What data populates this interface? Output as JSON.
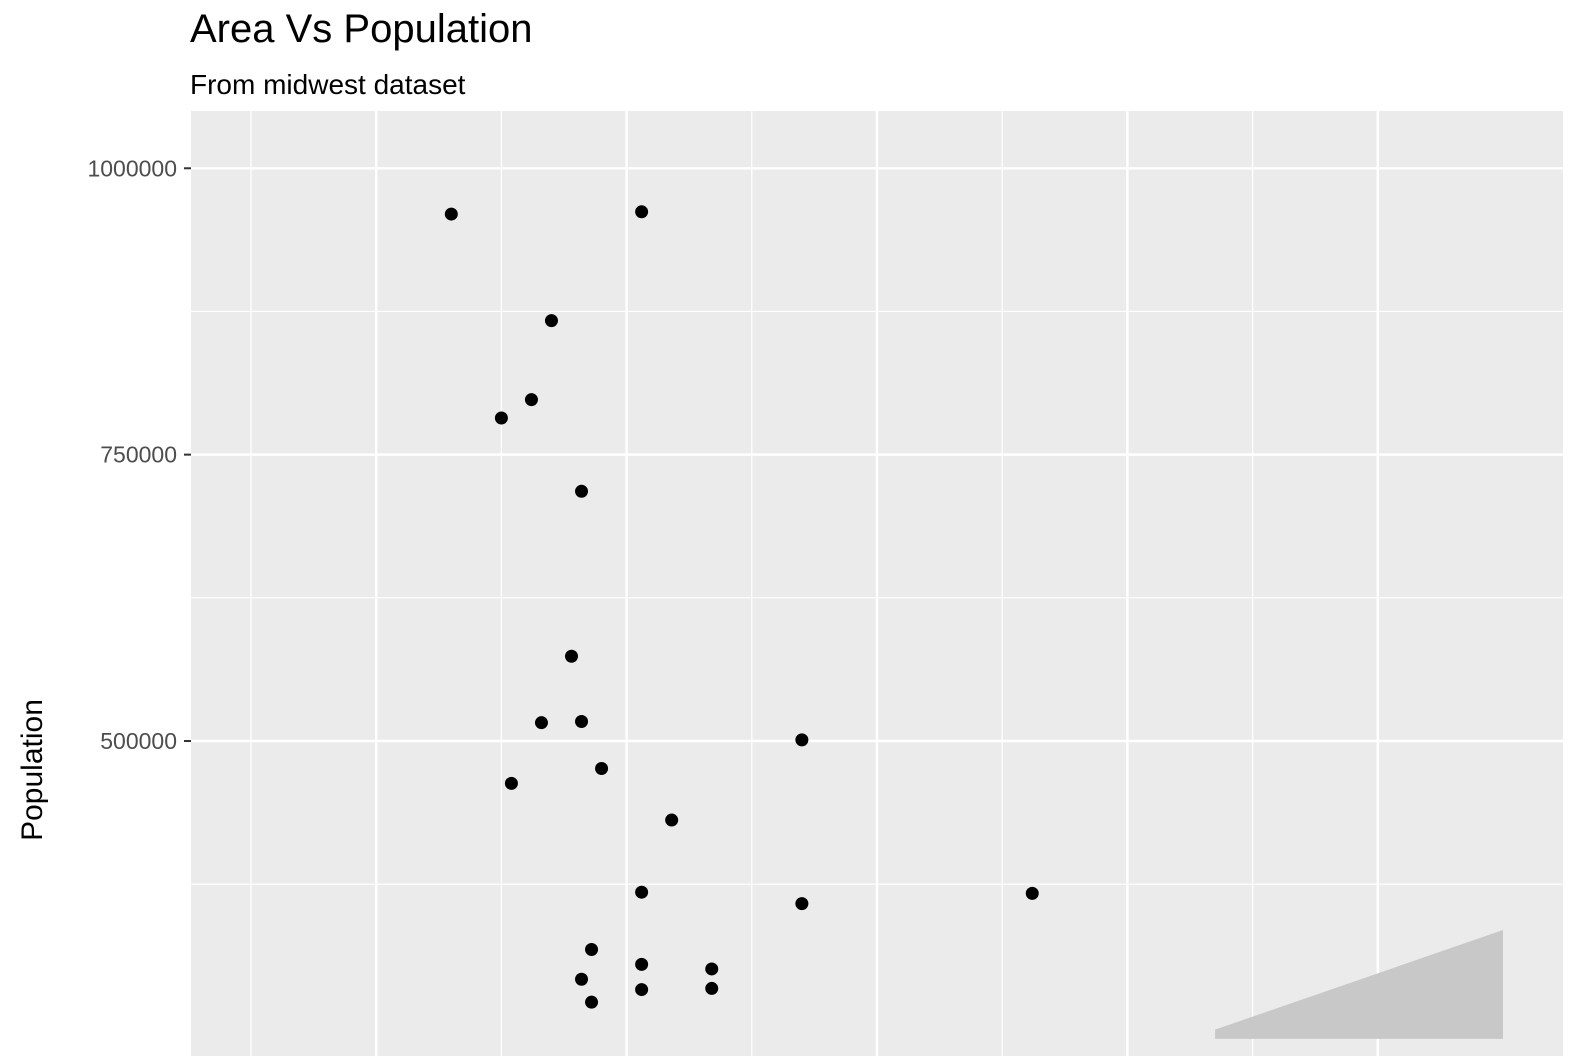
{
  "chart_data": {
    "type": "scatter",
    "title": "Area Vs Population",
    "subtitle": "From midwest dataset",
    "xlabel": "",
    "ylabel": "Population",
    "xlim": [
      0,
      1.0
    ],
    "ylim": [
      225000,
      1050000
    ],
    "x_major_ticks": [
      0.1,
      0.3,
      0.5,
      0.7,
      0.9
    ],
    "x_minor_ticks": [
      0.0,
      0.2,
      0.4,
      0.6,
      0.8
    ],
    "y_major_ticks": [
      500000,
      750000,
      1000000
    ],
    "y_tick_labels": [
      "500000",
      "750000",
      "1000000"
    ],
    "y_minor_ticks": [
      375000,
      625000,
      875000
    ],
    "grid": true,
    "colors": {
      "panel": "#ebebeb",
      "grid": "#ffffff",
      "point": "#000000",
      "ribbon": "#c8c8c8"
    },
    "points": [
      {
        "x": 0.16,
        "y": 960000
      },
      {
        "x": 0.312,
        "y": 962000
      },
      {
        "x": 0.24,
        "y": 867000
      },
      {
        "x": 0.224,
        "y": 798000
      },
      {
        "x": 0.2,
        "y": 782000
      },
      {
        "x": 0.264,
        "y": 718000
      },
      {
        "x": 0.256,
        "y": 574000
      },
      {
        "x": 0.232,
        "y": 516000
      },
      {
        "x": 0.264,
        "y": 517000
      },
      {
        "x": 0.44,
        "y": 501000
      },
      {
        "x": 0.28,
        "y": 476000
      },
      {
        "x": 0.208,
        "y": 463000
      },
      {
        "x": 0.336,
        "y": 431000
      },
      {
        "x": 0.312,
        "y": 368000
      },
      {
        "x": 0.44,
        "y": 358000
      },
      {
        "x": 0.624,
        "y": 367000
      },
      {
        "x": 0.272,
        "y": 318000
      },
      {
        "x": 0.312,
        "y": 305000
      },
      {
        "x": 0.368,
        "y": 301000
      },
      {
        "x": 0.264,
        "y": 292000
      },
      {
        "x": 0.312,
        "y": 283000
      },
      {
        "x": 0.368,
        "y": 284000
      },
      {
        "x": 0.272,
        "y": 272000
      }
    ],
    "ribbon": [
      {
        "x": 0.77,
        "y_low": 240000,
        "y_high": 248000
      },
      {
        "x": 1.0,
        "y_low": 240000,
        "y_high": 335000
      }
    ]
  }
}
